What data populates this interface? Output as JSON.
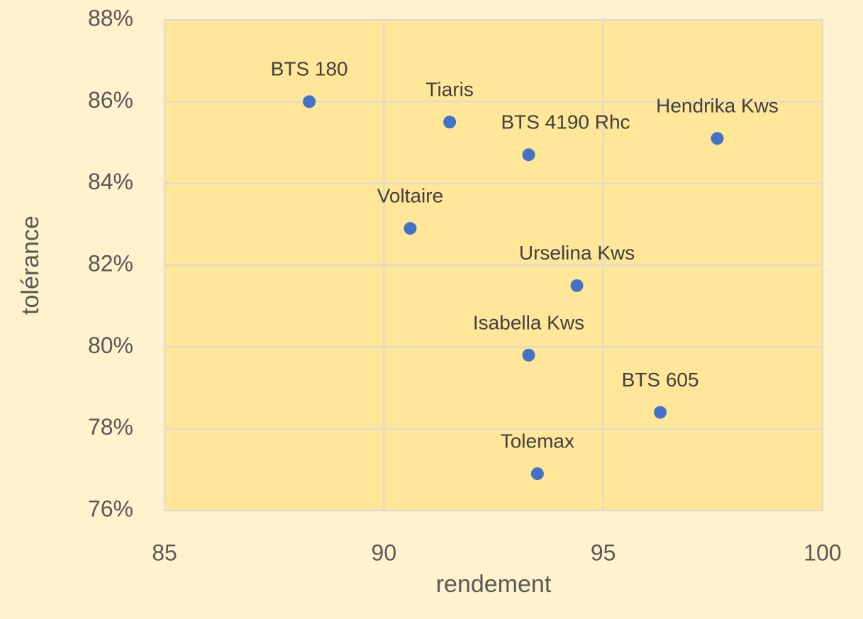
{
  "chart_data": {
    "type": "scatter",
    "x_label": "rendement",
    "y_label": "tolérance",
    "series": [
      {
        "color": "#4472c4",
        "labels": [
          "BTS 180",
          "Tiaris",
          "BTS 4190 Rhc",
          "Hendrika Kws",
          "Voltaire",
          "Urselina Kws",
          "Isabella Kws",
          "BTS 605",
          "Tolemax"
        ],
        "x": [
          88.3,
          91.5,
          93.3,
          97.6,
          90.6,
          94.4,
          93.3,
          96.3,
          93.5
        ],
        "values": [
          86.0,
          85.5,
          84.7,
          85.1,
          82.9,
          81.5,
          79.8,
          78.4,
          76.9
        ]
      }
    ],
    "xlim": [
      85,
      100
    ],
    "xticks": [
      85,
      90,
      95,
      100
    ],
    "ylim": [
      76,
      88
    ],
    "yticks": [
      {
        "value": 76,
        "label": "76%"
      },
      {
        "value": 78,
        "label": "78%"
      },
      {
        "value": 80,
        "label": "80%"
      },
      {
        "value": 82,
        "label": "82%"
      },
      {
        "value": 84,
        "label": "84%"
      },
      {
        "value": 86,
        "label": "86%"
      },
      {
        "value": 88,
        "label": "88%"
      }
    ],
    "grid": true
  }
}
